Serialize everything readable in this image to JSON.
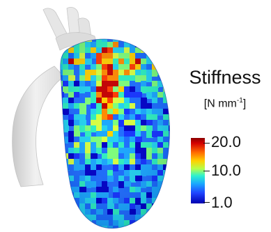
{
  "legend": {
    "title": "Stiffness",
    "unit_prefix": "[N mm",
    "unit_exponent": "-1",
    "unit_suffix": "]",
    "ticks": [
      "20.0",
      "10.0",
      "1.0"
    ]
  },
  "colors": {
    "vessel": "#d9d9d9",
    "high": "#b00000",
    "mid": "#f5f500",
    "low": "#0a1cff"
  }
}
